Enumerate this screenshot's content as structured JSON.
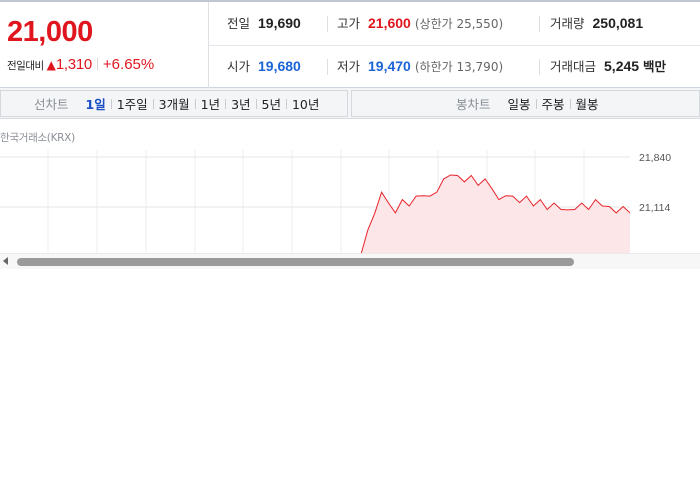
{
  "quote": {
    "price": "21,000",
    "change_label": "전일대비",
    "change_arrow": "▲",
    "change_value": "1,310",
    "change_pct": "+6.65%",
    "colors": {
      "up": "#e0161e",
      "down": "#1a64d6"
    }
  },
  "stats": {
    "prev_close": {
      "label": "전일",
      "value": "19,690"
    },
    "high": {
      "label": "고가",
      "value": "21,600",
      "paren": "(상한가 25,550)"
    },
    "volume": {
      "label": "거래량",
      "value": "250,081"
    },
    "open": {
      "label": "시가",
      "value": "19,680"
    },
    "low": {
      "label": "저가",
      "value": "19,470",
      "paren": "(하한가 13,790)"
    },
    "amount": {
      "label": "거래대금",
      "value": "5,245",
      "unit": "백만"
    }
  },
  "period_bar": {
    "line_title": "선차트",
    "line_options": [
      "1일",
      "1주일",
      "3개월",
      "1년",
      "3년",
      "5년",
      "10년"
    ],
    "line_active": "1일",
    "candle_title": "봉차트",
    "candle_options": [
      "일봉",
      "주봉",
      "월봉"
    ]
  },
  "chart": {
    "source_label": "한국거래소(KRX)"
  },
  "chart_data": {
    "type": "area",
    "title": "",
    "y_ticks": [
      "21,840",
      "21,114"
    ],
    "ylim": [
      20388,
      21840
    ],
    "grid": true,
    "series": [
      {
        "color": "#e8232b",
        "fill": "#fde6e7",
        "values": [
          20350,
          20400,
          20800,
          21000,
          21350,
          21150,
          21050,
          21200,
          21150,
          21250,
          21300,
          21250,
          21350,
          21500,
          21600,
          21550,
          21500,
          21550,
          21450,
          21500,
          21400,
          21200,
          21300,
          21250,
          21200,
          21250,
          21150,
          21200,
          21100,
          21150,
          21100,
          21050,
          21100,
          21150,
          21100,
          21200,
          21150,
          21100,
          21050,
          21100,
          21050
        ]
      }
    ]
  }
}
